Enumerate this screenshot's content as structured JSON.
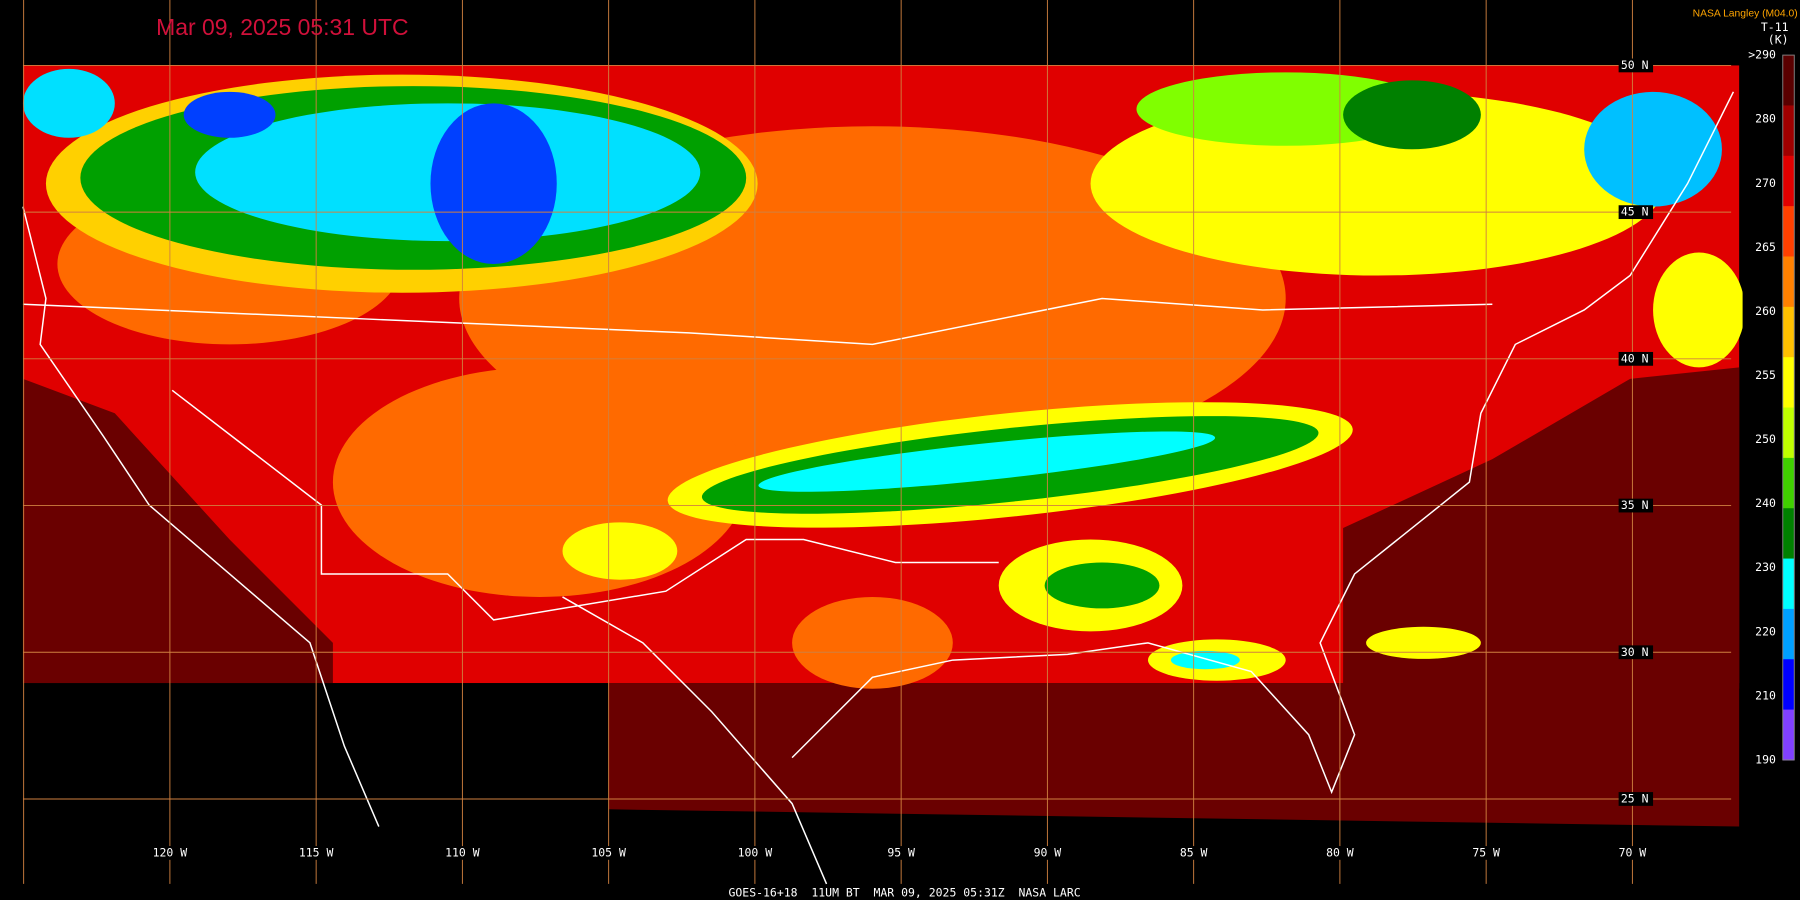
{
  "title": "Mar 09, 2025 05:31 UTC",
  "credit": "NASA Langley (M04.0)",
  "colorbar": {
    "label": "T-11",
    "unit": "(K)",
    "ticks": [
      ">290",
      "280",
      "270",
      "265",
      "260",
      "255",
      "250",
      "240",
      "230",
      "220",
      "210",
      "190"
    ],
    "colors": [
      "#5a0000",
      "#a00000",
      "#e00000",
      "#ff4000",
      "#ff8000",
      "#ffc000",
      "#ffff00",
      "#c0ff00",
      "#40d000",
      "#008000",
      "#00ffff",
      "#00a0ff",
      "#0000ff",
      "#8040ff"
    ]
  },
  "latitude_labels": [
    "50 N",
    "45 N",
    "40 N",
    "35 N",
    "30 N",
    "25 N"
  ],
  "longitude_labels": [
    "120 W",
    "115 W",
    "110 W",
    "105 W",
    "100 W",
    "95 W",
    "90 W",
    "85 W",
    "80 W",
    "75 W",
    "70 W"
  ],
  "footer": "GOES-16+18  11UM BT  MAR 09, 2025 05:31Z  NASA LARC"
}
